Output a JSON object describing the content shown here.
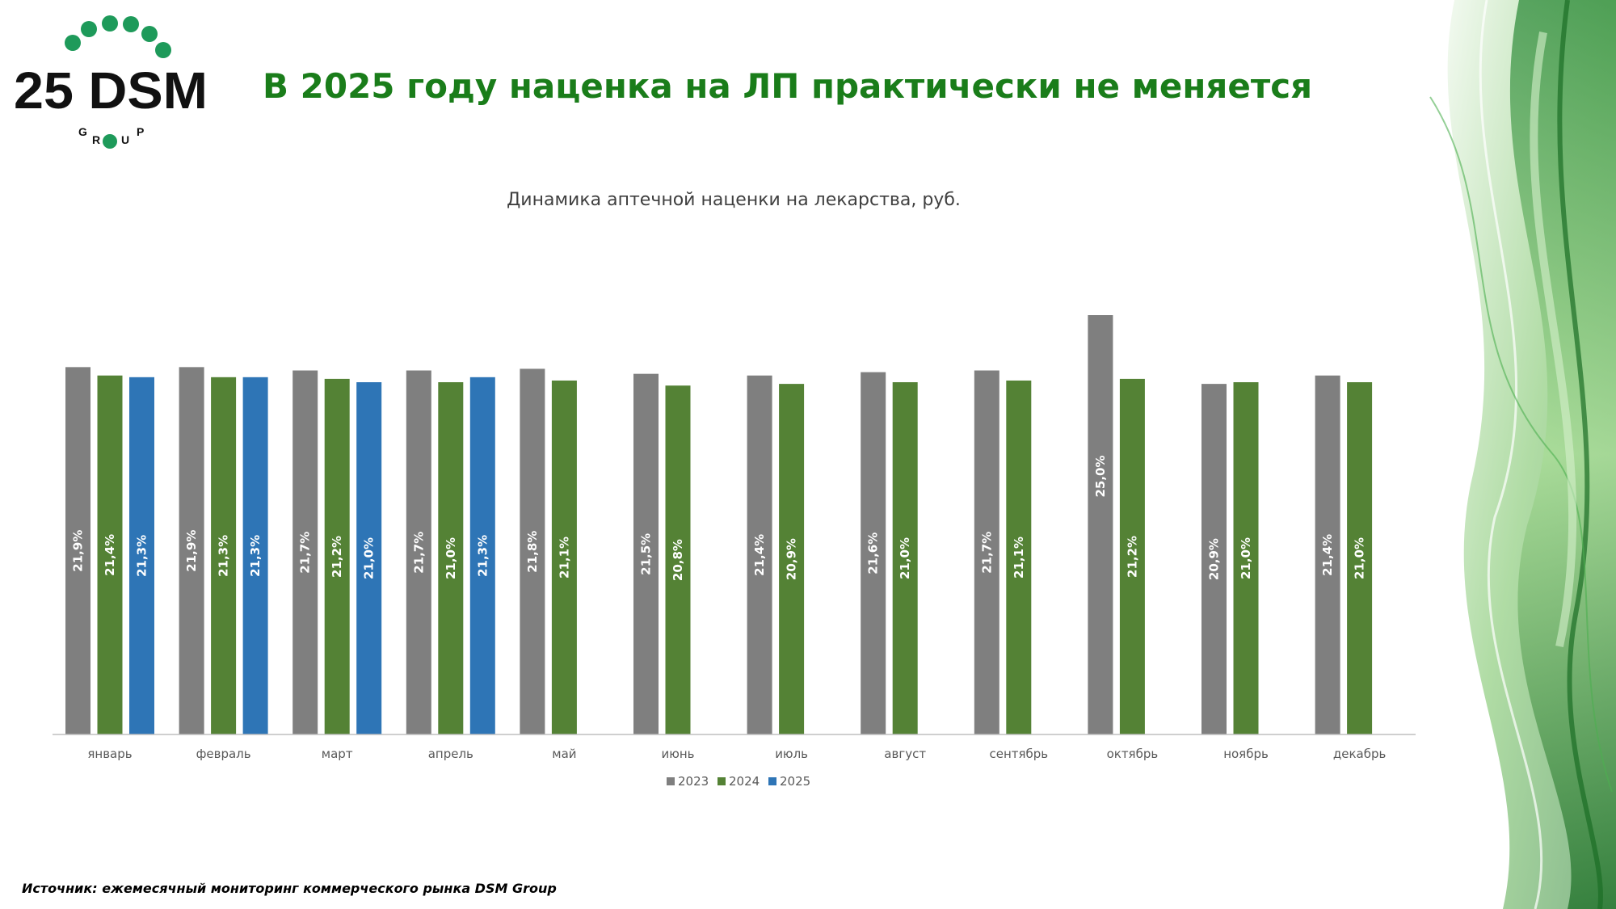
{
  "logo": {
    "text": "25 DSM",
    "sub_letters": [
      "G",
      "R",
      "O",
      "U",
      "P"
    ]
  },
  "headline": "В 2025 году наценка на ЛП практически не меняется",
  "source": "Источник: ежемесячный мониторинг коммерческого рынка DSM Group",
  "colors": {
    "s2023": "#7f7f7f",
    "s2024": "#548235",
    "s2025": "#2e75b6",
    "brand": "#1a7d1a",
    "logoDot": "#1e9a5a"
  },
  "chart_data": {
    "type": "bar",
    "title": "Динамика аптечной наценки на лекарства, руб.",
    "categories": [
      "январь",
      "февраль",
      "март",
      "апрель",
      "май",
      "июнь",
      "июль",
      "август",
      "сентябрь",
      "октябрь",
      "ноябрь",
      "декабрь"
    ],
    "series": [
      {
        "name": "2023",
        "values": [
          21.9,
          21.9,
          21.7,
          21.7,
          21.8,
          21.5,
          21.4,
          21.6,
          21.7,
          25.0,
          20.9,
          21.4
        ],
        "labels": [
          "21,9%",
          "21,9%",
          "21,7%",
          "21,7%",
          "21,8%",
          "21,5%",
          "21,4%",
          "21,6%",
          "21,7%",
          "25,0%",
          "20,9%",
          "21,4%"
        ]
      },
      {
        "name": "2024",
        "values": [
          21.4,
          21.3,
          21.2,
          21.0,
          21.1,
          20.8,
          20.9,
          21.0,
          21.1,
          21.2,
          21.0,
          21.0
        ],
        "labels": [
          "21,4%",
          "21,3%",
          "21,2%",
          "21,0%",
          "21,1%",
          "20,8%",
          "20,9%",
          "21,0%",
          "21,1%",
          "21,2%",
          "21,0%",
          "21,0%"
        ]
      },
      {
        "name": "2025",
        "values": [
          21.3,
          21.3,
          21.0,
          21.3,
          null,
          null,
          null,
          null,
          null,
          null,
          null,
          null
        ],
        "labels": [
          "21,3%",
          "21,3%",
          "21,0%",
          "21,3%",
          null,
          null,
          null,
          null,
          null,
          null,
          null,
          null
        ]
      }
    ],
    "ylim": [
      0,
      25.0
    ],
    "legend": "bottom",
    "grid": false
  }
}
